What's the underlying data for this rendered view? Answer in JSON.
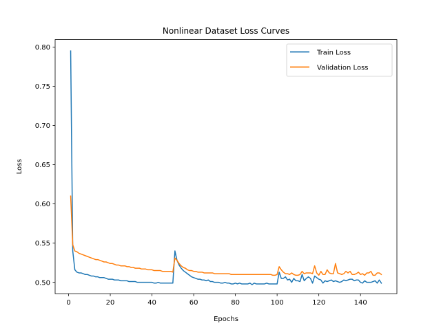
{
  "chart_data": {
    "type": "line",
    "title": "Nonlinear Dataset Loss Curves",
    "xlabel": "Epochs",
    "ylabel": "Loss",
    "xlim": [
      -6.45,
      157.45
    ],
    "ylim": [
      0.4855,
      0.8095
    ],
    "xticks": [
      0,
      20,
      40,
      60,
      80,
      100,
      120,
      140
    ],
    "yticks": [
      0.5,
      0.55,
      0.6,
      0.65,
      0.7,
      0.75,
      0.8
    ],
    "grid": false,
    "legend_position": "top-right",
    "series": [
      {
        "name": "Train Loss",
        "color": "#1f77b4",
        "x": [
          1,
          2,
          3,
          4,
          5,
          6,
          7,
          8,
          9,
          10,
          11,
          12,
          13,
          14,
          15,
          16,
          17,
          18,
          19,
          20,
          21,
          22,
          23,
          24,
          25,
          26,
          27,
          28,
          29,
          30,
          31,
          32,
          33,
          34,
          35,
          36,
          37,
          38,
          39,
          40,
          41,
          42,
          43,
          44,
          45,
          46,
          47,
          48,
          49,
          50,
          51,
          52,
          53,
          54,
          55,
          56,
          57,
          58,
          59,
          60,
          61,
          62,
          63,
          64,
          65,
          66,
          67,
          68,
          69,
          70,
          71,
          72,
          73,
          74,
          75,
          76,
          77,
          78,
          79,
          80,
          81,
          82,
          83,
          84,
          85,
          86,
          87,
          88,
          89,
          90,
          91,
          92,
          93,
          94,
          95,
          96,
          97,
          98,
          99,
          100,
          101,
          102,
          103,
          104,
          105,
          106,
          107,
          108,
          109,
          110,
          111,
          112,
          113,
          114,
          115,
          116,
          117,
          118,
          119,
          120,
          121,
          122,
          123,
          124,
          125,
          126,
          127,
          128,
          129,
          130,
          131,
          132,
          133,
          134,
          135,
          136,
          137,
          138,
          139,
          140,
          141,
          142,
          143,
          144,
          145,
          146,
          147,
          148,
          149,
          150
        ],
        "values": [
          0.795,
          0.54,
          0.516,
          0.513,
          0.512,
          0.512,
          0.511,
          0.51,
          0.51,
          0.509,
          0.508,
          0.508,
          0.507,
          0.507,
          0.506,
          0.506,
          0.506,
          0.505,
          0.504,
          0.504,
          0.504,
          0.503,
          0.503,
          0.503,
          0.502,
          0.502,
          0.502,
          0.502,
          0.501,
          0.501,
          0.501,
          0.501,
          0.5,
          0.5,
          0.5,
          0.5,
          0.5,
          0.5,
          0.5,
          0.5,
          0.499,
          0.499,
          0.5,
          0.499,
          0.499,
          0.499,
          0.499,
          0.499,
          0.499,
          0.499,
          0.54,
          0.528,
          0.522,
          0.518,
          0.515,
          0.513,
          0.511,
          0.509,
          0.507,
          0.506,
          0.505,
          0.504,
          0.504,
          0.503,
          0.503,
          0.502,
          0.503,
          0.501,
          0.501,
          0.5,
          0.5,
          0.5,
          0.499,
          0.499,
          0.5,
          0.499,
          0.499,
          0.498,
          0.498,
          0.499,
          0.498,
          0.499,
          0.498,
          0.498,
          0.498,
          0.498,
          0.499,
          0.497,
          0.499,
          0.498,
          0.498,
          0.498,
          0.498,
          0.498,
          0.499,
          0.498,
          0.498,
          0.498,
          0.498,
          0.498,
          0.513,
          0.505,
          0.505,
          0.507,
          0.503,
          0.504,
          0.5,
          0.505,
          0.502,
          0.502,
          0.501,
          0.51,
          0.502,
          0.505,
          0.507,
          0.505,
          0.499,
          0.508,
          0.506,
          0.504,
          0.503,
          0.499,
          0.502,
          0.501,
          0.502,
          0.503,
          0.501,
          0.502,
          0.501,
          0.5,
          0.501,
          0.503,
          0.502,
          0.503,
          0.504,
          0.504,
          0.502,
          0.503,
          0.503,
          0.5,
          0.499,
          0.502,
          0.5,
          0.5,
          0.5,
          0.501,
          0.502,
          0.499,
          0.503,
          0.499
        ]
      },
      {
        "name": "Validation Loss",
        "color": "#ff7f0e",
        "x": [
          1,
          2,
          3,
          4,
          5,
          6,
          7,
          8,
          9,
          10,
          11,
          12,
          13,
          14,
          15,
          16,
          17,
          18,
          19,
          20,
          21,
          22,
          23,
          24,
          25,
          26,
          27,
          28,
          29,
          30,
          31,
          32,
          33,
          34,
          35,
          36,
          37,
          38,
          39,
          40,
          41,
          42,
          43,
          44,
          45,
          46,
          47,
          48,
          49,
          50,
          51,
          52,
          53,
          54,
          55,
          56,
          57,
          58,
          59,
          60,
          61,
          62,
          63,
          64,
          65,
          66,
          67,
          68,
          69,
          70,
          71,
          72,
          73,
          74,
          75,
          76,
          77,
          78,
          79,
          80,
          81,
          82,
          83,
          84,
          85,
          86,
          87,
          88,
          89,
          90,
          91,
          92,
          93,
          94,
          95,
          96,
          97,
          98,
          99,
          100,
          101,
          102,
          103,
          104,
          105,
          106,
          107,
          108,
          109,
          110,
          111,
          112,
          113,
          114,
          115,
          116,
          117,
          118,
          119,
          120,
          121,
          122,
          123,
          124,
          125,
          126,
          127,
          128,
          129,
          130,
          131,
          132,
          133,
          134,
          135,
          136,
          137,
          138,
          139,
          140,
          141,
          142,
          143,
          144,
          145,
          146,
          147,
          148,
          149,
          150
        ],
        "values": [
          0.61,
          0.548,
          0.54,
          0.539,
          0.537,
          0.536,
          0.535,
          0.534,
          0.533,
          0.532,
          0.531,
          0.53,
          0.529,
          0.529,
          0.528,
          0.527,
          0.526,
          0.526,
          0.525,
          0.524,
          0.524,
          0.523,
          0.522,
          0.522,
          0.521,
          0.521,
          0.521,
          0.52,
          0.52,
          0.519,
          0.519,
          0.518,
          0.518,
          0.518,
          0.517,
          0.517,
          0.517,
          0.516,
          0.516,
          0.516,
          0.515,
          0.515,
          0.515,
          0.515,
          0.514,
          0.514,
          0.514,
          0.514,
          0.514,
          0.513,
          0.531,
          0.528,
          0.524,
          0.521,
          0.519,
          0.518,
          0.516,
          0.515,
          0.515,
          0.514,
          0.514,
          0.513,
          0.513,
          0.513,
          0.512,
          0.512,
          0.512,
          0.512,
          0.512,
          0.511,
          0.511,
          0.511,
          0.511,
          0.511,
          0.511,
          0.511,
          0.511,
          0.51,
          0.51,
          0.51,
          0.51,
          0.51,
          0.51,
          0.51,
          0.51,
          0.51,
          0.51,
          0.51,
          0.51,
          0.51,
          0.51,
          0.51,
          0.51,
          0.51,
          0.51,
          0.51,
          0.51,
          0.509,
          0.509,
          0.51,
          0.52,
          0.516,
          0.513,
          0.511,
          0.511,
          0.51,
          0.512,
          0.51,
          0.509,
          0.509,
          0.51,
          0.514,
          0.511,
          0.512,
          0.512,
          0.512,
          0.511,
          0.521,
          0.512,
          0.509,
          0.514,
          0.51,
          0.51,
          0.516,
          0.512,
          0.511,
          0.511,
          0.524,
          0.512,
          0.511,
          0.51,
          0.511,
          0.514,
          0.512,
          0.514,
          0.51,
          0.51,
          0.511,
          0.513,
          0.51,
          0.511,
          0.509,
          0.512,
          0.512,
          0.514,
          0.509,
          0.509,
          0.512,
          0.512,
          0.51
        ]
      }
    ]
  }
}
